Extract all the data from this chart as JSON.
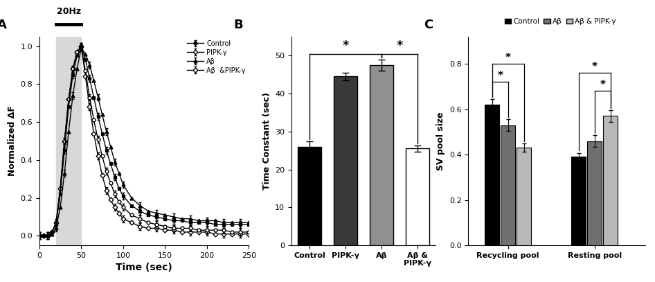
{
  "panel_A": {
    "xlabel": "Time (sec)",
    "ylabel": "Normalized ΔF",
    "xlim": [
      0,
      250
    ],
    "ylim": [
      -0.05,
      1.05
    ],
    "stim_start": 20,
    "stim_end": 50,
    "stim_label": "20Hz",
    "legend": [
      "Control",
      "PIPK-γ",
      "Aβ",
      "Aβ  &PIPK-γ"
    ],
    "time": [
      0,
      5,
      10,
      15,
      20,
      25,
      30,
      35,
      40,
      45,
      50,
      55,
      60,
      65,
      70,
      75,
      80,
      85,
      90,
      95,
      100,
      110,
      120,
      130,
      140,
      150,
      160,
      170,
      180,
      190,
      200,
      210,
      220,
      230,
      240,
      250
    ],
    "control_y": [
      0.0,
      0.0,
      0.0,
      0.02,
      0.06,
      0.22,
      0.45,
      0.68,
      0.85,
      0.95,
      1.0,
      0.93,
      0.83,
      0.73,
      0.63,
      0.54,
      0.45,
      0.38,
      0.31,
      0.25,
      0.21,
      0.16,
      0.13,
      0.11,
      0.1,
      0.09,
      0.08,
      0.08,
      0.07,
      0.07,
      0.07,
      0.06,
      0.06,
      0.06,
      0.06,
      0.06
    ],
    "pipky_y": [
      0.0,
      0.0,
      0.0,
      0.02,
      0.07,
      0.25,
      0.5,
      0.72,
      0.88,
      0.97,
      1.0,
      0.87,
      0.73,
      0.61,
      0.51,
      0.42,
      0.34,
      0.28,
      0.22,
      0.18,
      0.15,
      0.11,
      0.09,
      0.07,
      0.06,
      0.05,
      0.04,
      0.04,
      0.04,
      0.03,
      0.03,
      0.03,
      0.03,
      0.02,
      0.02,
      0.02
    ],
    "ab_y": [
      0.0,
      0.0,
      0.0,
      0.01,
      0.04,
      0.15,
      0.33,
      0.55,
      0.74,
      0.88,
      0.99,
      0.96,
      0.9,
      0.82,
      0.73,
      0.64,
      0.55,
      0.47,
      0.39,
      0.33,
      0.27,
      0.2,
      0.16,
      0.13,
      0.12,
      0.11,
      0.1,
      0.09,
      0.09,
      0.08,
      0.08,
      0.08,
      0.07,
      0.07,
      0.07,
      0.07
    ],
    "abpipky_y": [
      0.0,
      0.0,
      0.0,
      0.02,
      0.07,
      0.25,
      0.5,
      0.72,
      0.88,
      0.97,
      1.0,
      0.84,
      0.68,
      0.54,
      0.42,
      0.32,
      0.24,
      0.19,
      0.15,
      0.12,
      0.09,
      0.07,
      0.05,
      0.04,
      0.04,
      0.03,
      0.03,
      0.02,
      0.02,
      0.02,
      0.02,
      0.01,
      0.01,
      0.01,
      0.01,
      0.01
    ],
    "err": 0.018
  },
  "panel_B": {
    "ylabel": "Time Constant (sec)",
    "categories": [
      "Control",
      "PIPK-γ",
      "Aβ",
      "Aβ &\nPIPK-γ"
    ],
    "values": [
      26.0,
      44.5,
      47.5,
      25.5
    ],
    "errors": [
      1.5,
      1.0,
      1.5,
      0.8
    ],
    "colors": [
      "#000000",
      "#3a3a3a",
      "#909090",
      "#ffffff"
    ],
    "ylim": [
      0,
      55
    ],
    "yticks": [
      0,
      10,
      20,
      30,
      40,
      50
    ]
  },
  "panel_C": {
    "ylabel": "SV pool size",
    "groups": [
      "Recycling pool",
      "Resting pool"
    ],
    "legend": [
      "Control",
      "Aβ",
      "Aβ & PIPK-γ"
    ],
    "recycling": [
      0.62,
      0.53,
      0.43
    ],
    "recycling_err": [
      0.025,
      0.025,
      0.018
    ],
    "resting": [
      0.39,
      0.46,
      0.57
    ],
    "resting_err": [
      0.018,
      0.025,
      0.025
    ],
    "colors": [
      "#000000",
      "#707070",
      "#b8b8b8"
    ],
    "ylim": [
      0,
      0.92
    ],
    "yticks": [
      0,
      0.2,
      0.4,
      0.6,
      0.8
    ]
  }
}
